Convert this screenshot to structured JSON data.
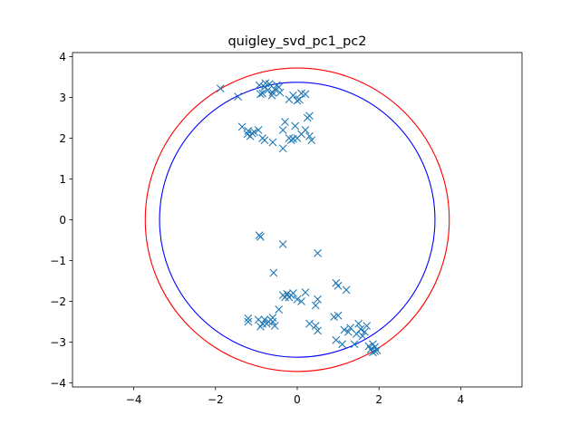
{
  "chart_data": {
    "type": "scatter",
    "title": "quigley_svd_pc1_pc2",
    "xlabel": "",
    "ylabel": "",
    "xlim": [
      -5.5,
      5.5
    ],
    "ylim": [
      -4.1,
      4.1
    ],
    "xticks": [
      -4,
      -2,
      0,
      2,
      4
    ],
    "yticks": [
      -4,
      -3,
      -2,
      -1,
      0,
      1,
      2,
      3,
      4
    ],
    "grid": false,
    "marker": "x",
    "colors": {
      "points": "#1f77b4",
      "outer_circle": "#ff0000",
      "inner_circle": "#0000ff",
      "axes": "#000000"
    },
    "circles": [
      {
        "center": [
          0,
          0
        ],
        "radius": 3.72,
        "color": "#ff0000"
      },
      {
        "center": [
          0,
          0
        ],
        "radius": 3.37,
        "color": "#0000ff"
      }
    ],
    "points": [
      [
        -1.88,
        3.22
      ],
      [
        -1.45,
        3.02
      ],
      [
        -0.93,
        3.3
      ],
      [
        -0.85,
        3.1
      ],
      [
        -0.8,
        3.25
      ],
      [
        -0.72,
        3.18
      ],
      [
        -0.68,
        3.33
      ],
      [
        -0.62,
        3.05
      ],
      [
        -0.55,
        3.2
      ],
      [
        -0.5,
        3.3
      ],
      [
        -0.45,
        3.25
      ],
      [
        -0.42,
        3.12
      ],
      [
        -0.6,
        3.12
      ],
      [
        -0.9,
        3.08
      ],
      [
        -0.78,
        3.35
      ],
      [
        -0.2,
        2.95
      ],
      [
        -0.1,
        3.05
      ],
      [
        0.05,
        2.95
      ],
      [
        0.1,
        3.1
      ],
      [
        0.2,
        3.08
      ],
      [
        0.0,
        2.92
      ],
      [
        -1.35,
        2.28
      ],
      [
        -1.2,
        2.18
      ],
      [
        -1.1,
        2.12
      ],
      [
        -1.15,
        2.05
      ],
      [
        -0.95,
        2.2
      ],
      [
        -0.85,
        2.0
      ],
      [
        -0.8,
        1.95
      ],
      [
        -1.05,
        2.15
      ],
      [
        -0.6,
        1.9
      ],
      [
        -0.35,
        1.75
      ],
      [
        -0.35,
        2.2
      ],
      [
        -0.3,
        2.4
      ],
      [
        -0.2,
        2.0
      ],
      [
        -0.15,
        1.95
      ],
      [
        -0.05,
        2.3
      ],
      [
        0.0,
        2.0
      ],
      [
        0.1,
        2.1
      ],
      [
        0.2,
        2.2
      ],
      [
        0.25,
        2.5
      ],
      [
        0.3,
        2.55
      ],
      [
        0.3,
        2.05
      ],
      [
        0.35,
        1.95
      ],
      [
        -0.1,
        1.98
      ],
      [
        -1.22,
        2.1
      ],
      [
        -0.93,
        -0.38
      ],
      [
        -0.9,
        -0.42
      ],
      [
        -0.35,
        -0.6
      ],
      [
        0.5,
        -0.82
      ],
      [
        -0.58,
        -1.3
      ],
      [
        -1.2,
        -2.42
      ],
      [
        -1.2,
        -2.5
      ],
      [
        -0.95,
        -2.45
      ],
      [
        -0.9,
        -2.62
      ],
      [
        -0.85,
        -2.55
      ],
      [
        -0.8,
        -2.45
      ],
      [
        -0.75,
        -2.55
      ],
      [
        -0.7,
        -2.5
      ],
      [
        -0.65,
        -2.45
      ],
      [
        -0.6,
        -2.4
      ],
      [
        -0.6,
        -2.5
      ],
      [
        -0.55,
        -2.6
      ],
      [
        -0.45,
        -2.2
      ],
      [
        -0.35,
        -1.85
      ],
      [
        -0.3,
        -1.9
      ],
      [
        -0.25,
        -1.82
      ],
      [
        -0.2,
        -1.9
      ],
      [
        -0.15,
        -1.85
      ],
      [
        -0.1,
        -1.8
      ],
      [
        0.0,
        -1.95
      ],
      [
        0.1,
        -2.0
      ],
      [
        0.2,
        -1.78
      ],
      [
        0.3,
        -2.55
      ],
      [
        0.45,
        -2.6
      ],
      [
        0.45,
        -2.1
      ],
      [
        0.5,
        -1.95
      ],
      [
        0.5,
        -2.72
      ],
      [
        0.9,
        -2.38
      ],
      [
        0.95,
        -1.55
      ],
      [
        1.0,
        -1.62
      ],
      [
        0.95,
        -2.95
      ],
      [
        1.0,
        -2.35
      ],
      [
        1.1,
        -3.05
      ],
      [
        1.15,
        -2.7
      ],
      [
        1.2,
        -1.72
      ],
      [
        1.25,
        -2.75
      ],
      [
        1.3,
        -2.65
      ],
      [
        1.4,
        -3.05
      ],
      [
        1.45,
        -2.8
      ],
      [
        1.5,
        -2.55
      ],
      [
        1.55,
        -2.68
      ],
      [
        1.6,
        -2.85
      ],
      [
        1.65,
        -2.75
      ],
      [
        1.7,
        -2.6
      ],
      [
        1.75,
        -3.1
      ],
      [
        1.8,
        -3.18
      ],
      [
        1.85,
        -3.25
      ],
      [
        1.9,
        -3.12
      ],
      [
        1.95,
        -3.2
      ],
      [
        1.85,
        -3.05
      ],
      [
        1.9,
        -3.22
      ]
    ]
  }
}
